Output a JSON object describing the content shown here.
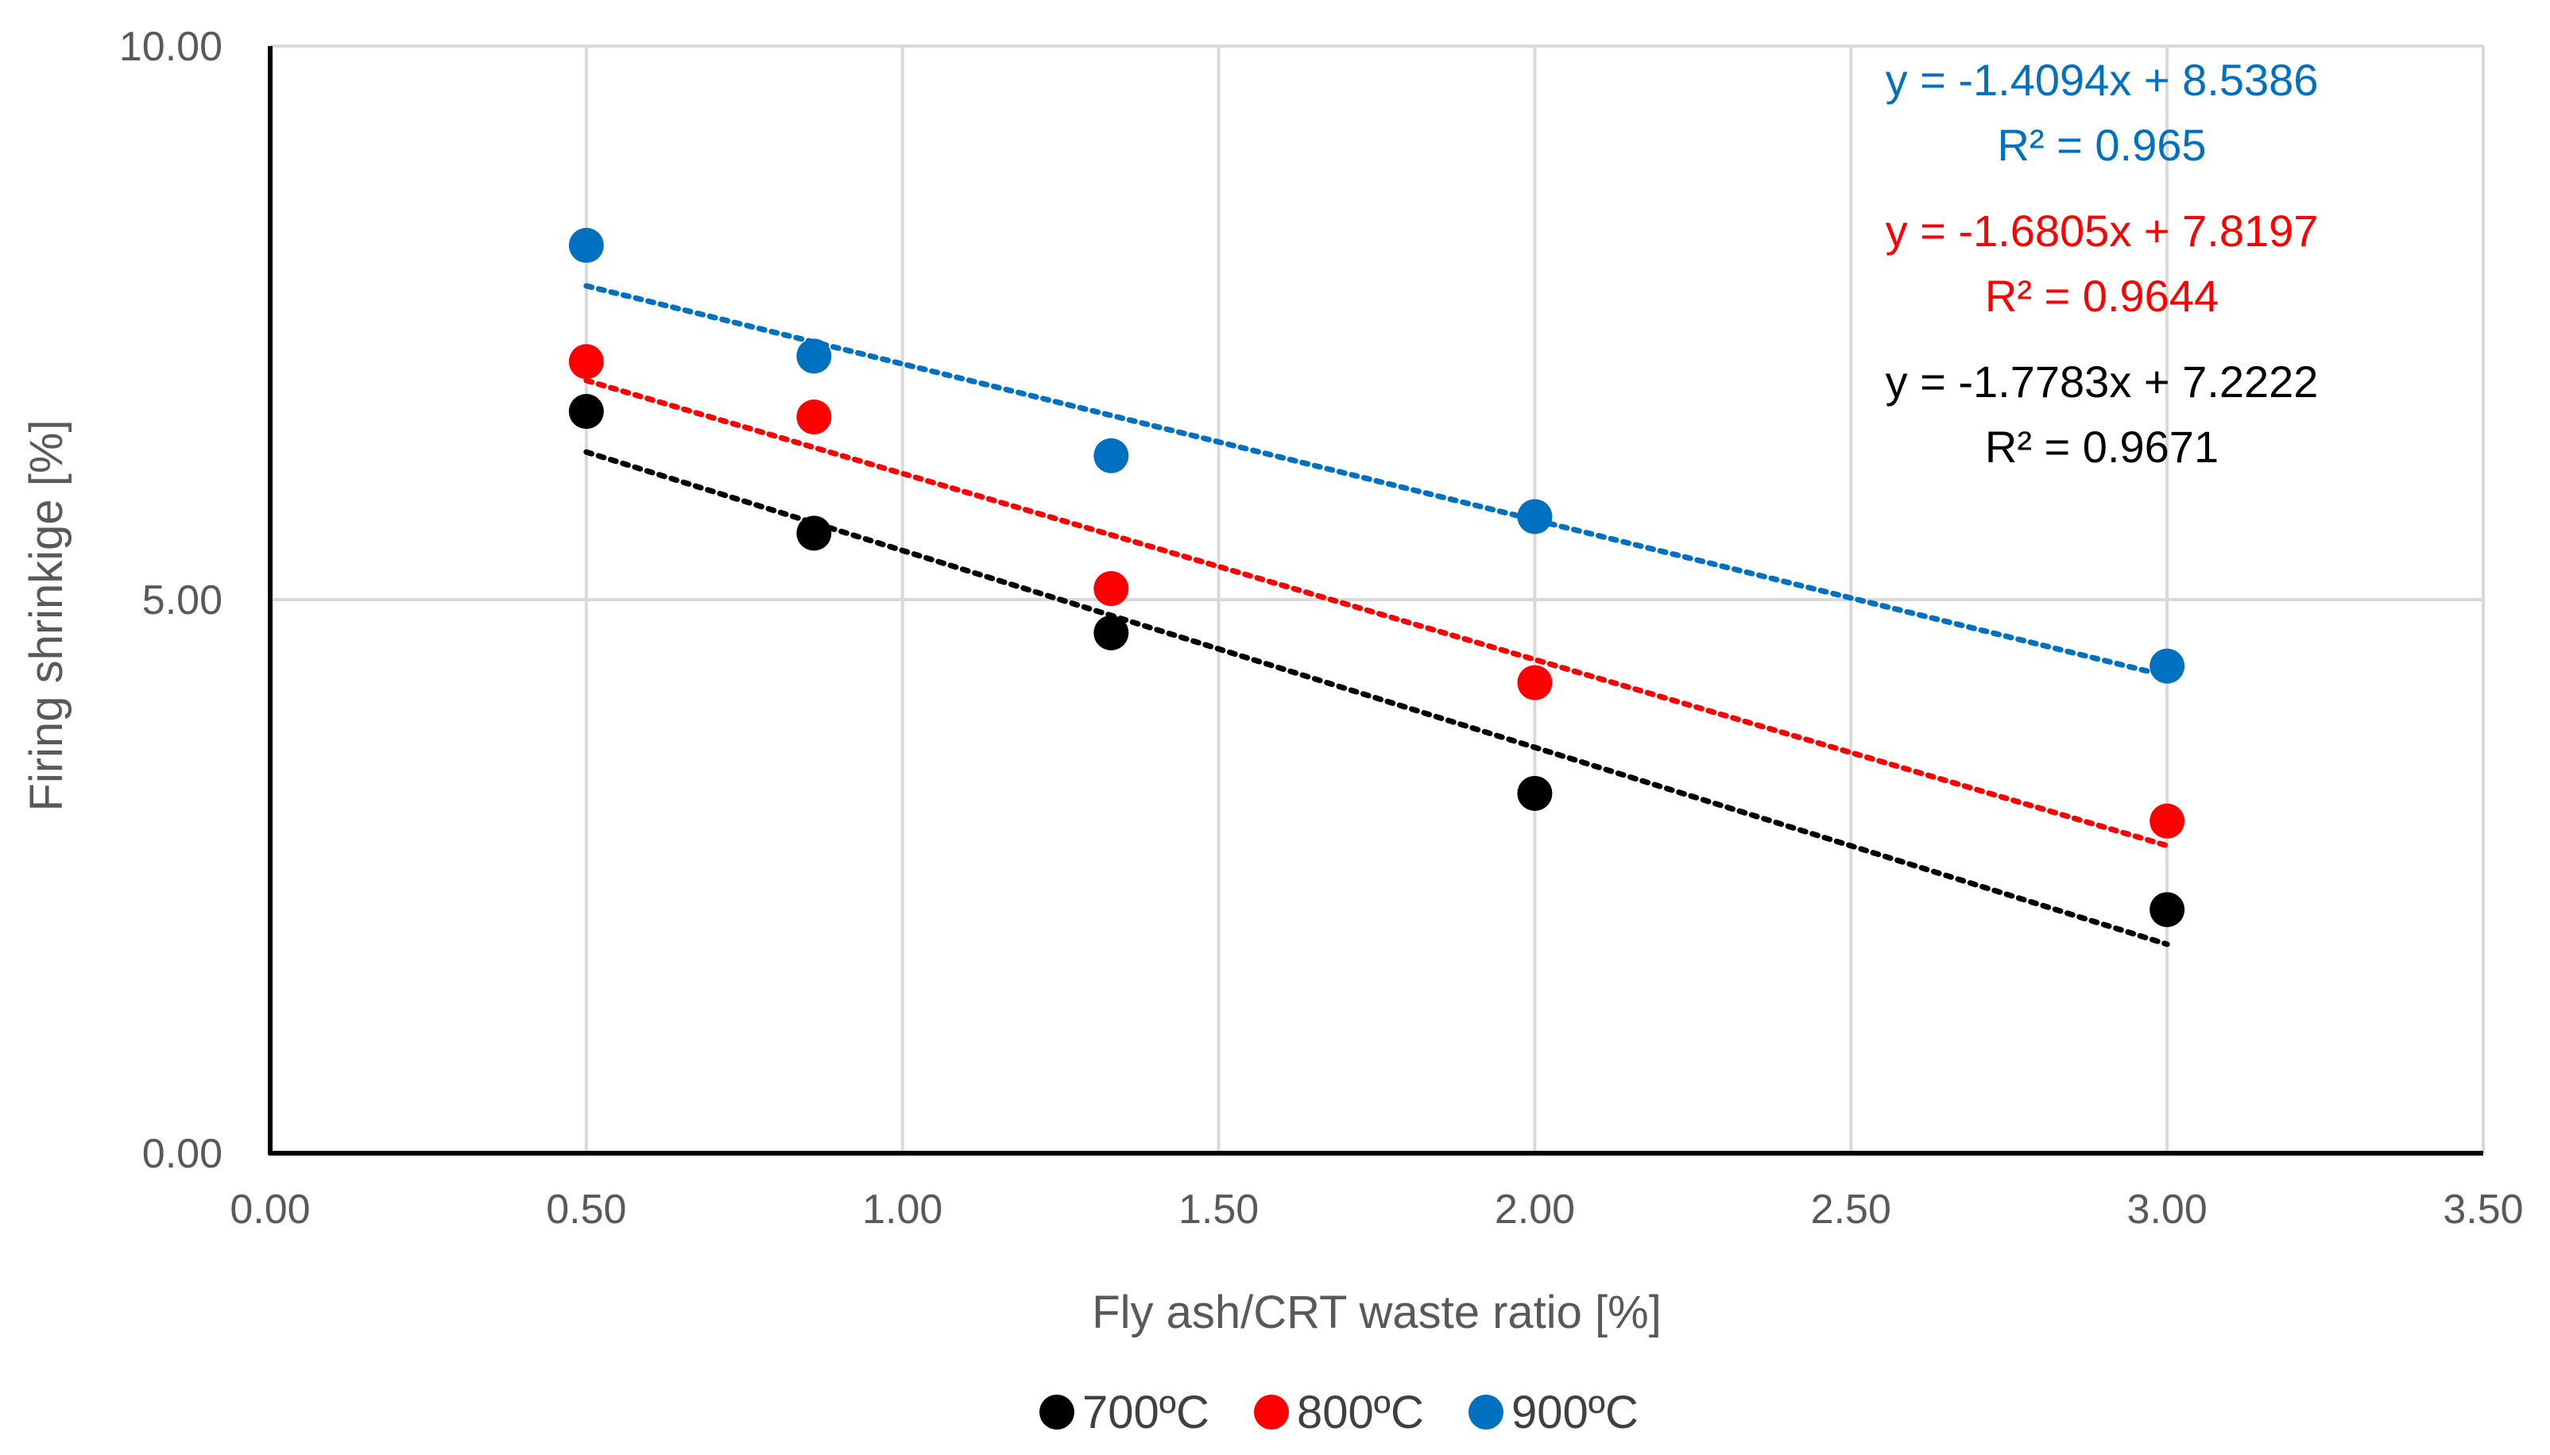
{
  "chart_data": {
    "type": "scatter",
    "title": "",
    "xlabel": "Fly ash/CRT waste ratio [%]",
    "ylabel": "Firing shrinkige [%]",
    "xlim": [
      0,
      3.5
    ],
    "ylim": [
      0,
      10
    ],
    "x_ticks": [
      "0.00",
      "0.50",
      "1.00",
      "1.50",
      "2.00",
      "2.50",
      "3.00",
      "3.50"
    ],
    "y_ticks": [
      "0.00",
      "5.00",
      "10.00"
    ],
    "x_tick_values": [
      0,
      0.5,
      1,
      1.5,
      2,
      2.5,
      3,
      3.5
    ],
    "y_tick_values": [
      0,
      5,
      10
    ],
    "grid": true,
    "legend_position": "bottom",
    "series": [
      {
        "name": "700ºC",
        "color": "#000000",
        "x": [
          0.5,
          0.86,
          1.33,
          2.0,
          3.0
        ],
        "y": [
          6.7,
          5.6,
          4.7,
          3.25,
          2.2
        ],
        "trendline": {
          "slope": -1.7783,
          "intercept": 7.2222
        },
        "equation": "y = -1.7783x + 7.2222",
        "r2": "R² = 0.9671"
      },
      {
        "name": "800ºC",
        "color": "#ff0000",
        "x": [
          0.5,
          0.86,
          1.33,
          2.0,
          3.0
        ],
        "y": [
          7.15,
          6.65,
          5.1,
          4.25,
          3.0
        ],
        "trendline": {
          "slope": -1.6805,
          "intercept": 7.8197
        },
        "equation": "y = -1.6805x + 7.8197",
        "r2": "R² = 0.9644"
      },
      {
        "name": "900ºC",
        "color": "#0070c0",
        "x": [
          0.5,
          0.86,
          1.33,
          2.0,
          3.0
        ],
        "y": [
          8.2,
          7.2,
          6.3,
          5.75,
          4.4
        ],
        "trendline": {
          "slope": -1.4094,
          "intercept": 8.5386
        },
        "equation": "y = -1.4094x + 8.5386",
        "r2": "R² = 0.965"
      }
    ],
    "annotation_order": [
      2,
      1,
      0
    ]
  }
}
